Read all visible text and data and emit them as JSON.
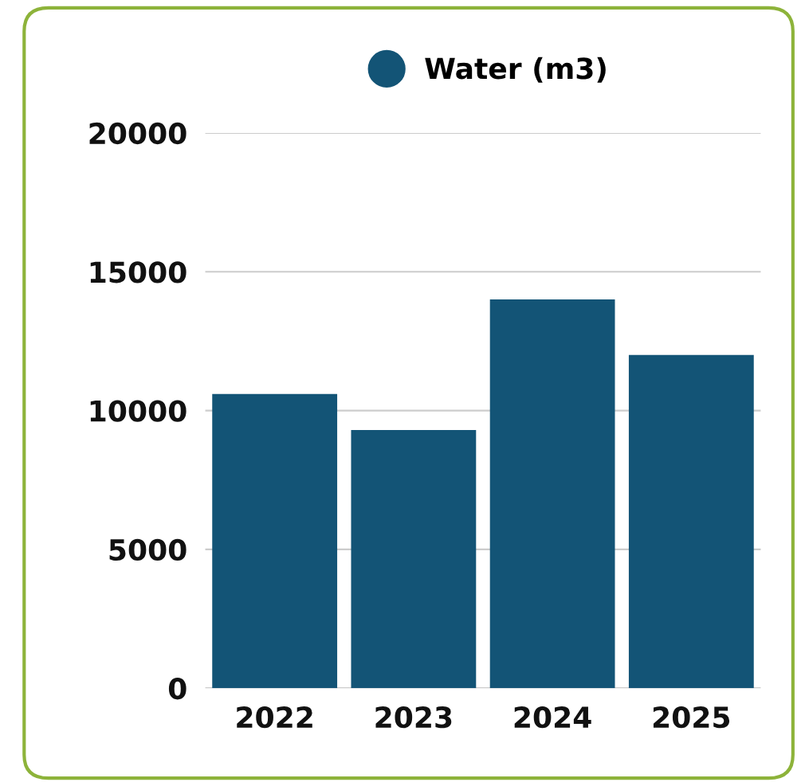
{
  "chart_data": {
    "type": "bar",
    "categories": [
      "2022",
      "2023",
      "2024",
      "2025"
    ],
    "series": [
      {
        "name": "Water (m3)",
        "color": "#135476",
        "values": [
          10600,
          9300,
          14000,
          12000
        ]
      }
    ],
    "ylim": [
      0,
      20000
    ],
    "yticks": [
      0,
      5000,
      10000,
      15000,
      20000
    ],
    "grid": "y",
    "legend": "top"
  }
}
